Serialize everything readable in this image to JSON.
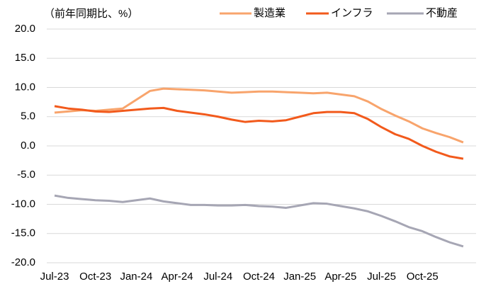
{
  "chart_data": {
    "type": "line",
    "subtitle": "（前年同期比、%）",
    "categories": [
      "Jul-23",
      null,
      null,
      "Oct-23",
      null,
      null,
      "Jan-24",
      null,
      null,
      "Apr-24",
      null,
      null,
      "Jul-24",
      null,
      null,
      "Oct-24",
      null,
      null,
      "Jan-25",
      null,
      null,
      "Apr-25",
      null,
      null,
      "Jul-25",
      null,
      null,
      "Oct-25",
      null,
      null,
      null
    ],
    "series": [
      {
        "name": "製造業",
        "color": "#f8a46c",
        "values": [
          5.7,
          5.9,
          6.1,
          6.0,
          6.2,
          6.4,
          7.9,
          9.4,
          9.8,
          9.7,
          9.6,
          9.5,
          9.3,
          9.1,
          9.2,
          9.3,
          9.3,
          9.2,
          9.1,
          9.0,
          9.1,
          8.8,
          8.5,
          7.6,
          6.3,
          5.2,
          4.2,
          3.0,
          2.2,
          1.5,
          0.6
        ]
      },
      {
        "name": "インフラ",
        "color": "#f25a1c",
        "values": [
          6.8,
          6.4,
          6.2,
          5.9,
          5.8,
          6.0,
          6.2,
          6.4,
          6.5,
          6.0,
          5.7,
          5.4,
          5.0,
          4.5,
          4.1,
          4.3,
          4.2,
          4.4,
          5.0,
          5.6,
          5.8,
          5.8,
          5.6,
          4.6,
          3.2,
          2.0,
          1.2,
          0.0,
          -1.0,
          -1.8,
          -2.2
        ]
      },
      {
        "name": "不動産",
        "color": "#a6a6b4",
        "values": [
          -8.5,
          -8.9,
          -9.1,
          -9.3,
          -9.4,
          -9.6,
          -9.3,
          -9.0,
          -9.5,
          -9.8,
          -10.1,
          -10.1,
          -10.2,
          -10.2,
          -10.1,
          -10.3,
          -10.4,
          -10.6,
          -10.2,
          -9.8,
          -9.9,
          -10.3,
          -10.7,
          -11.2,
          -12.0,
          -12.9,
          -13.9,
          -14.6,
          -15.6,
          -16.5,
          -17.2
        ]
      }
    ],
    "ylim": [
      -20,
      20
    ],
    "yticks": [
      {
        "value": 20,
        "label": "20.0"
      },
      {
        "value": 15,
        "label": "15.0"
      },
      {
        "value": 10,
        "label": "10.0"
      },
      {
        "value": 5,
        "label": "5.0"
      },
      {
        "value": 0,
        "label": "0.0"
      },
      {
        "value": -5,
        "label": "-5.0"
      },
      {
        "value": -10,
        "label": "-10.0"
      },
      {
        "value": -15,
        "label": "-15.0"
      },
      {
        "value": -20,
        "label": "-20.0"
      }
    ],
    "negative_tick_color": "#ff0000",
    "grid": true,
    "legend": "top-right"
  }
}
